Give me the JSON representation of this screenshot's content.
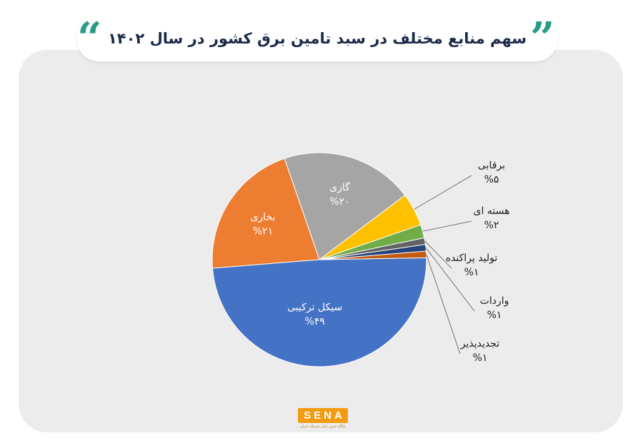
{
  "title": "سهم منابع مختلف در سبد تامین برق کشور در سال ۱۴۰۲",
  "logo": {
    "text": "SENA",
    "subtitle": "پایگاه خبری بازار سرمایه ایران"
  },
  "colors": {
    "background": "#ffffff",
    "panel": "#ececec",
    "title_text": "#1b2a4a",
    "quote": "#2a9b86",
    "logo": "#f39c12"
  },
  "chart_data": {
    "type": "pie",
    "title": "",
    "start_angle_deg": 19,
    "direction": "counterclockwise",
    "slices": [
      {
        "label": "برقابی",
        "value": 5,
        "display": "%۵",
        "color": "#ffc000",
        "label_position": "outside"
      },
      {
        "label": "گازی",
        "value": 20,
        "display": "%۲۰",
        "color": "#a5a5a5",
        "label_position": "inside"
      },
      {
        "label": "بخاری",
        "value": 21,
        "display": "%۲۱",
        "color": "#ed7d31",
        "label_position": "inside"
      },
      {
        "label": "سیکل ترکیبی",
        "value": 49,
        "display": "%۴۹",
        "color": "#4472c4",
        "label_position": "inside"
      },
      {
        "label": "تجدیدپذیر",
        "value": 1,
        "display": "%۱",
        "color": "#c55a11",
        "label_position": "outside"
      },
      {
        "label": "واردات",
        "value": 1,
        "display": "%۱",
        "color": "#264478",
        "label_position": "outside"
      },
      {
        "label": "تولید پراکنده",
        "value": 1,
        "display": "%۱",
        "color": "#636363",
        "label_position": "outside"
      },
      {
        "label": "هسته ای",
        "value": 2,
        "display": "%۲",
        "color": "#70ad47",
        "label_position": "outside"
      }
    ]
  }
}
